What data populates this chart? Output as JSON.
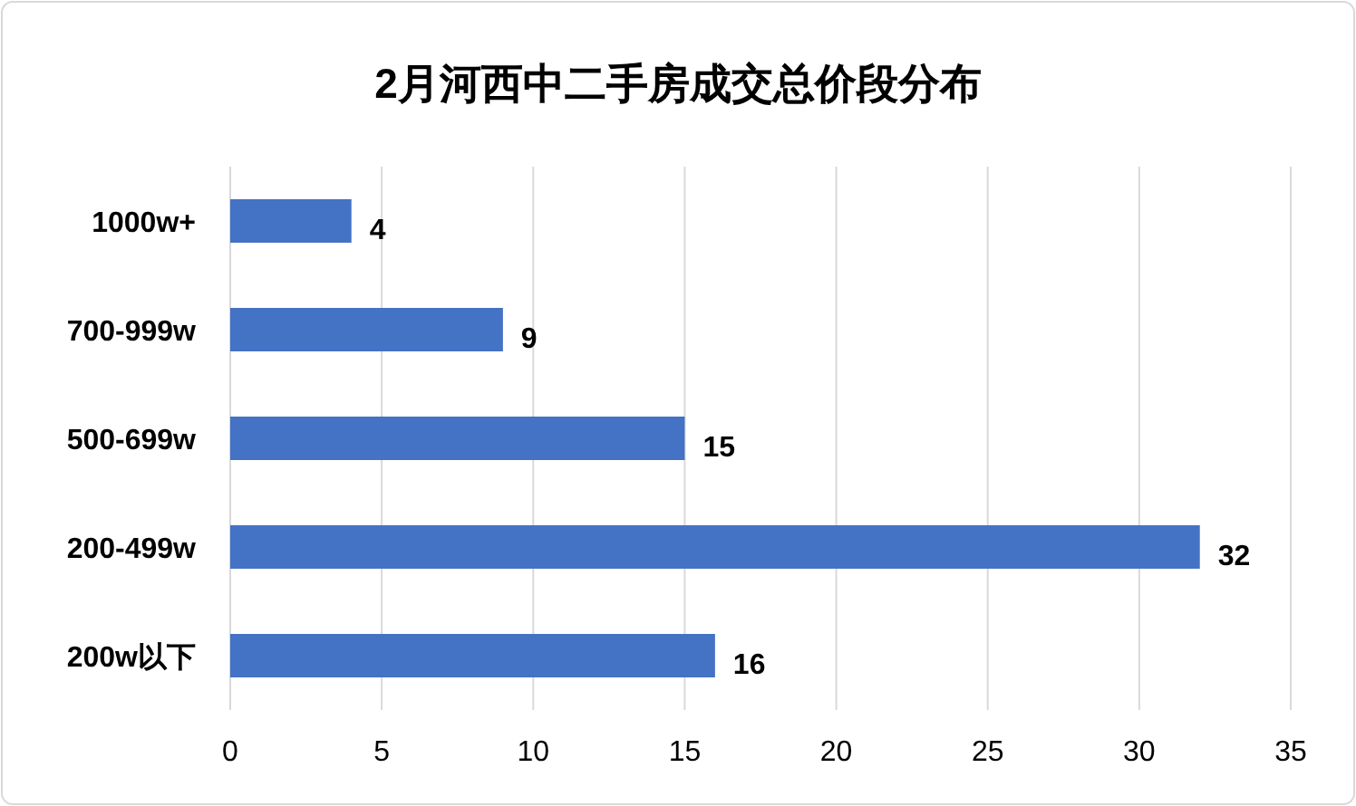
{
  "chart_data": {
    "type": "bar",
    "title": "2月河西中二手房成交总价段分布",
    "orientation": "horizontal",
    "categories": [
      "1000w+",
      "700-999w",
      "500-699w",
      "200-499w",
      "200w以下"
    ],
    "values": [
      4,
      9,
      15,
      32,
      16
    ],
    "color": "#4472c4",
    "xlim": [
      0,
      35
    ],
    "xticks": [
      0,
      5,
      10,
      15,
      20,
      25,
      30,
      35
    ],
    "grid": "x",
    "data_labels": true
  }
}
